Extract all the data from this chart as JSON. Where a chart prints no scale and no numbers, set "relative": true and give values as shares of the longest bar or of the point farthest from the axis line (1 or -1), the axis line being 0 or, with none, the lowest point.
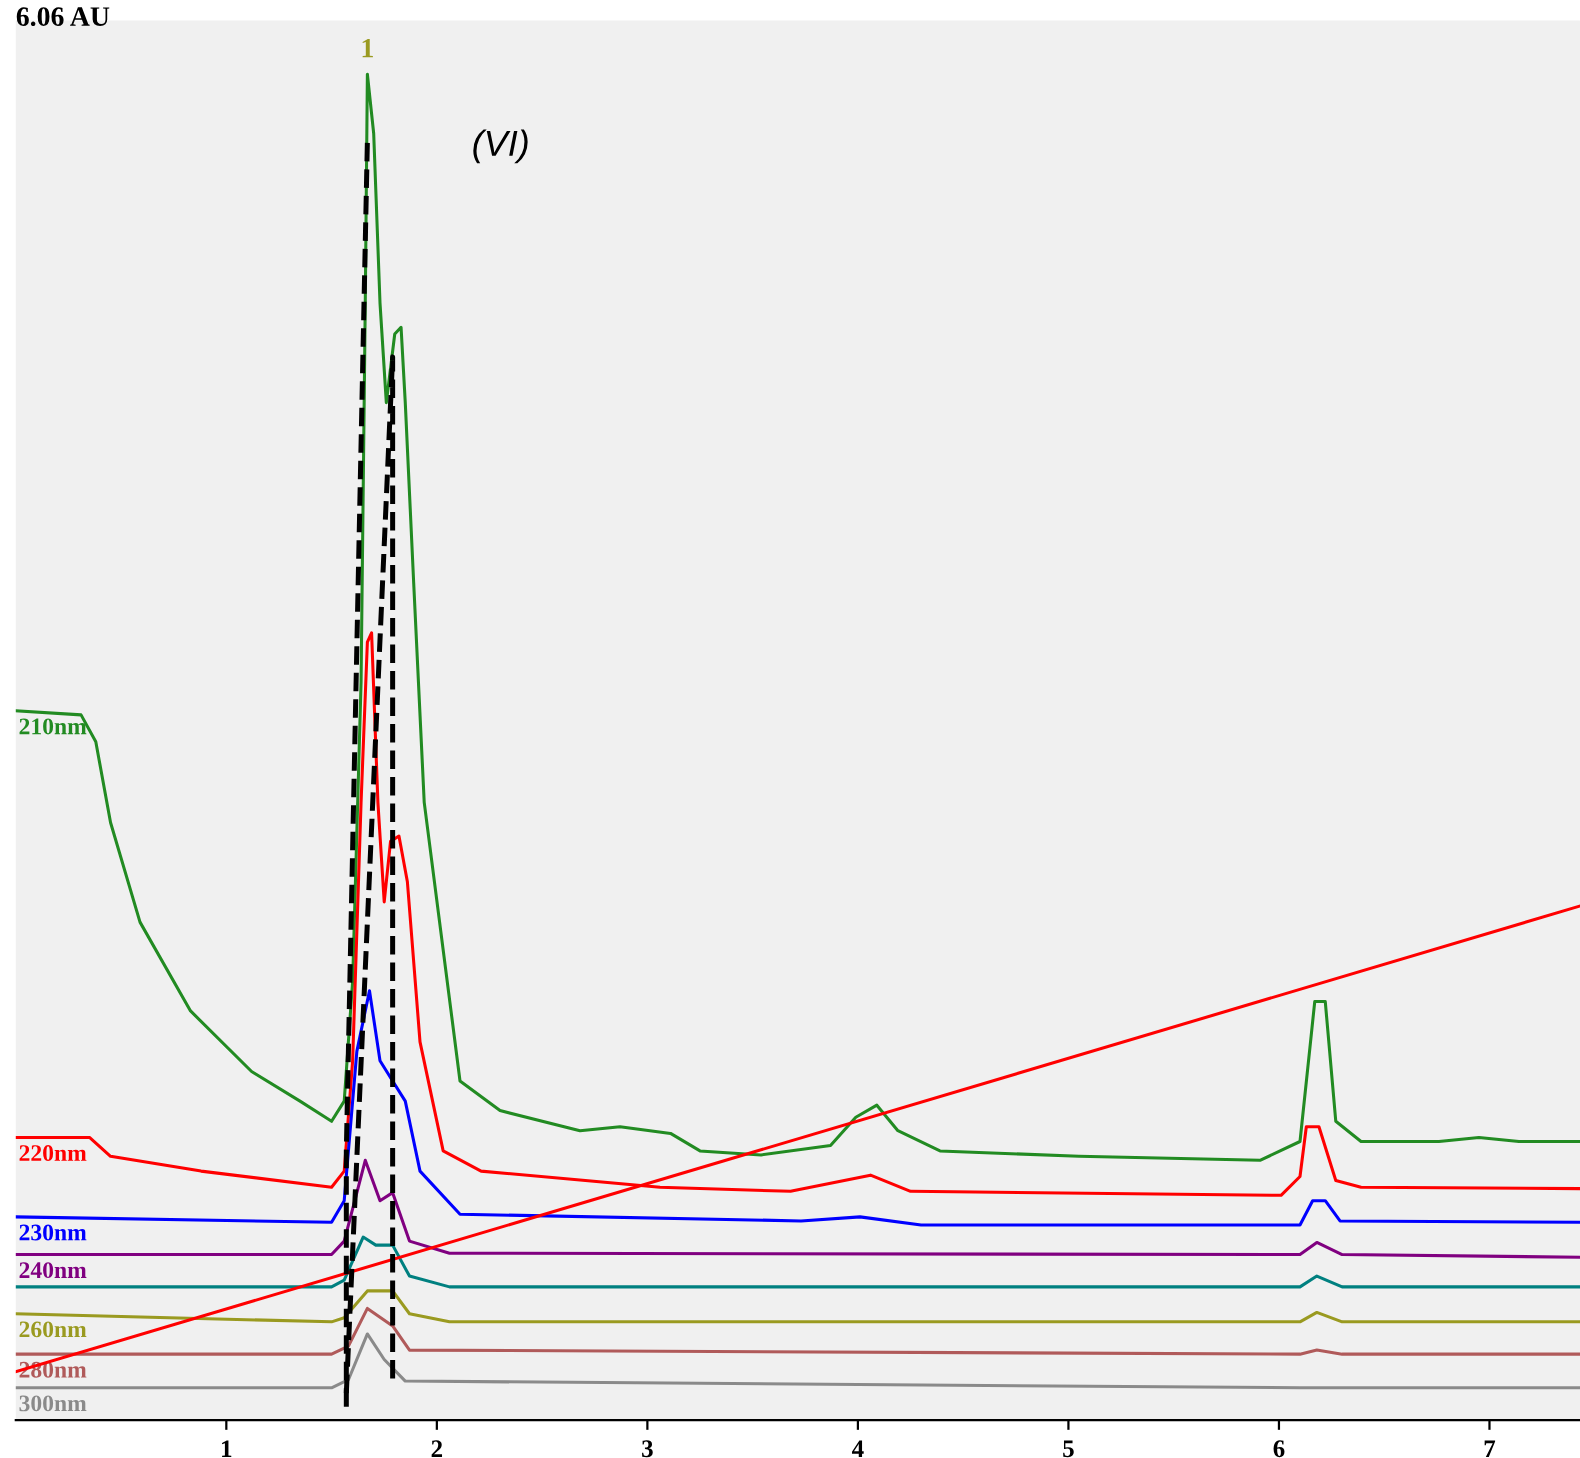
{
  "chart_data": {
    "type": "line",
    "relative": true,
    "xlim": [
      0,
      7.43
    ],
    "xticks": [
      1,
      2,
      3,
      4,
      5,
      6,
      7
    ],
    "grid": false,
    "marker": "none",
    "line_style": "solid",
    "annotations": [
      "6.06 AU",
      "(VI)",
      {
        "text": "1",
        "x": 1.67,
        "y": 1.0
      }
    ],
    "series": [
      {
        "name": "210nm",
        "color": "#228b22",
        "x": [
          0,
          0.31,
          0.38,
          0.45,
          0.59,
          0.83,
          1.12,
          1.35,
          1.5,
          1.56,
          1.6,
          1.64,
          1.66,
          1.67,
          1.7,
          1.73,
          1.76,
          1.8,
          1.83,
          1.85,
          1.89,
          1.94,
          2.11,
          2.3,
          2.68,
          2.87,
          3.11,
          3.25,
          3.54,
          3.87,
          3.99,
          4.09,
          4.19,
          4.39,
          5.05,
          5.91,
          6.1,
          6.15,
          6.17,
          6.22,
          6.27,
          6.39,
          6.76,
          6.95,
          7.14,
          7.43
        ],
        "values": [
          0.527,
          0.524,
          0.504,
          0.444,
          0.37,
          0.304,
          0.259,
          0.237,
          0.222,
          0.237,
          0.326,
          0.548,
          0.83,
          1.0,
          0.956,
          0.83,
          0.756,
          0.807,
          0.812,
          0.756,
          0.622,
          0.459,
          0.252,
          0.23,
          0.215,
          0.218,
          0.213,
          0.2,
          0.197,
          0.204,
          0.225,
          0.234,
          0.215,
          0.2,
          0.196,
          0.193,
          0.207,
          0.281,
          0.311,
          0.311,
          0.222,
          0.207,
          0.207,
          0.21,
          0.207,
          0.207
        ]
      },
      {
        "name": "220nm",
        "color": "#ff0000",
        "x": [
          0,
          0.35,
          0.45,
          0.88,
          1.5,
          1.56,
          1.6,
          1.64,
          1.67,
          1.69,
          1.72,
          1.75,
          1.78,
          1.82,
          1.86,
          1.92,
          2.03,
          2.21,
          3.06,
          3.68,
          4.06,
          4.25,
          6.01,
          6.1,
          6.13,
          6.19,
          6.27,
          6.39,
          7.43
        ],
        "values": [
          0.21,
          0.21,
          0.196,
          0.185,
          0.173,
          0.185,
          0.267,
          0.459,
          0.578,
          0.585,
          0.459,
          0.385,
          0.43,
          0.434,
          0.4,
          0.281,
          0.2,
          0.185,
          0.173,
          0.17,
          0.182,
          0.17,
          0.167,
          0.181,
          0.218,
          0.218,
          0.178,
          0.173,
          0.172
        ]
      },
      {
        "name": "230nm",
        "color": "#0000ff",
        "x": [
          0,
          1.5,
          1.56,
          1.62,
          1.68,
          1.73,
          1.79,
          1.85,
          1.92,
          2.11,
          3.73,
          4.01,
          4.3,
          6.1,
          6.16,
          6.22,
          6.29,
          7.43
        ],
        "values": [
          0.151,
          0.147,
          0.163,
          0.274,
          0.319,
          0.267,
          0.252,
          0.237,
          0.185,
          0.153,
          0.148,
          0.151,
          0.145,
          0.145,
          0.163,
          0.163,
          0.148,
          0.147
        ]
      },
      {
        "name": "240nm",
        "color": "#800080",
        "x": [
          0,
          1.5,
          1.56,
          1.66,
          1.73,
          1.79,
          1.87,
          2.06,
          6.1,
          6.18,
          6.3,
          7.43
        ],
        "values": [
          0.123,
          0.123,
          0.133,
          0.193,
          0.163,
          0.169,
          0.133,
          0.124,
          0.123,
          0.132,
          0.123,
          0.121
        ]
      },
      {
        "name": null,
        "color": "#008080",
        "x": [
          0,
          1.5,
          1.56,
          1.65,
          1.71,
          1.79,
          1.87,
          2.06,
          6.1,
          6.18,
          6.3,
          7.43
        ],
        "values": [
          0.099,
          0.099,
          0.104,
          0.136,
          0.13,
          0.13,
          0.107,
          0.099,
          0.099,
          0.107,
          0.099,
          0.099
        ]
      },
      {
        "name": "260nm",
        "color": "#9a9a20",
        "x": [
          0,
          1.5,
          1.56,
          1.67,
          1.79,
          1.87,
          2.06,
          6.1,
          6.18,
          6.3,
          7.43
        ],
        "values": [
          0.079,
          0.073,
          0.076,
          0.096,
          0.096,
          0.079,
          0.073,
          0.073,
          0.08,
          0.073,
          0.073
        ]
      },
      {
        "name": "280nm",
        "color": "#b05a5a",
        "x": [
          0,
          1.5,
          1.58,
          1.67,
          1.79,
          1.87,
          6.1,
          6.18,
          6.3,
          7.43
        ],
        "values": [
          0.049,
          0.049,
          0.055,
          0.083,
          0.07,
          0.052,
          0.049,
          0.052,
          0.049,
          0.049
        ]
      },
      {
        "name": "300nm",
        "color": "#8a8a8a",
        "x": [
          0,
          1.5,
          1.58,
          1.67,
          1.75,
          1.85,
          6.1,
          7.43
        ],
        "values": [
          0.024,
          0.024,
          0.03,
          0.064,
          0.045,
          0.029,
          0.024,
          0.024
        ]
      },
      {
        "name": null,
        "color": "#ff0000",
        "x": [
          0,
          7.43
        ],
        "values": [
          0.036,
          0.382
        ]
      },
      {
        "name": null,
        "color": "#000000",
        "line_style": "dashed",
        "x": [
          1.57,
          1.57,
          1.67
        ],
        "values": [
          0.01,
          0.2,
          0.95
        ]
      },
      {
        "name": null,
        "color": "#000000",
        "line_style": "dashed",
        "x": [
          1.57,
          1.79,
          1.79
        ],
        "values": [
          0.02,
          0.79,
          0.03
        ]
      }
    ]
  }
}
